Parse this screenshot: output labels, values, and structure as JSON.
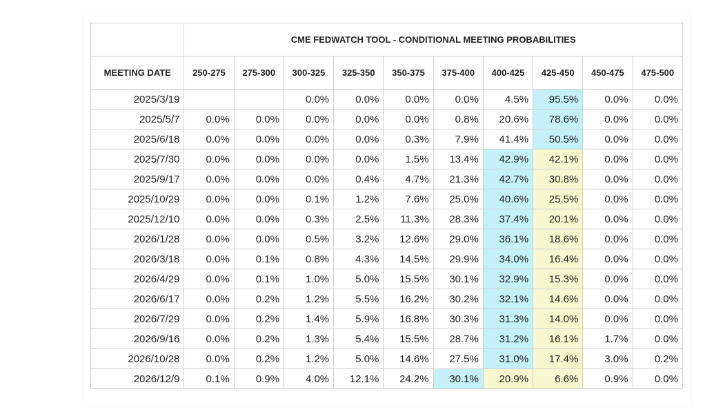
{
  "table": {
    "title": "CME FEDWATCH TOOL - CONDITIONAL MEETING PROBABILITIES",
    "date_header": "MEETING DATE",
    "columns": [
      "250-275",
      "275-300",
      "300-325",
      "325-350",
      "350-375",
      "375-400",
      "400-425",
      "425-450",
      "450-475",
      "475-500"
    ],
    "highlight_colors": {
      "blue": "#c4f0f8",
      "yellow": "#f8f8cf"
    },
    "rows": [
      {
        "date": "2025/3/19",
        "cells": [
          {
            "v": ""
          },
          {
            "v": ""
          },
          {
            "v": "0.0%"
          },
          {
            "v": "0.0%"
          },
          {
            "v": "0.0%"
          },
          {
            "v": "0.0%"
          },
          {
            "v": "4.5%"
          },
          {
            "v": "95.5%",
            "hl": "blue"
          },
          {
            "v": "0.0%"
          },
          {
            "v": "0.0%"
          }
        ]
      },
      {
        "date": "2025/5/7",
        "cells": [
          {
            "v": "0.0%"
          },
          {
            "v": "0.0%"
          },
          {
            "v": "0.0%"
          },
          {
            "v": "0.0%"
          },
          {
            "v": "0.0%"
          },
          {
            "v": "0.8%"
          },
          {
            "v": "20.6%"
          },
          {
            "v": "78.6%",
            "hl": "blue"
          },
          {
            "v": "0.0%"
          },
          {
            "v": "0.0%"
          }
        ]
      },
      {
        "date": "2025/6/18",
        "cells": [
          {
            "v": "0.0%"
          },
          {
            "v": "0.0%"
          },
          {
            "v": "0.0%"
          },
          {
            "v": "0.0%"
          },
          {
            "v": "0.3%"
          },
          {
            "v": "7.9%"
          },
          {
            "v": "41.4%"
          },
          {
            "v": "50.5%",
            "hl": "blue"
          },
          {
            "v": "0.0%"
          },
          {
            "v": "0.0%"
          }
        ]
      },
      {
        "date": "2025/7/30",
        "cells": [
          {
            "v": "0.0%"
          },
          {
            "v": "0.0%"
          },
          {
            "v": "0.0%"
          },
          {
            "v": "0.0%"
          },
          {
            "v": "1.5%"
          },
          {
            "v": "13.4%"
          },
          {
            "v": "42.9%",
            "hl": "blue"
          },
          {
            "v": "42.1%",
            "hl": "yellow"
          },
          {
            "v": "0.0%"
          },
          {
            "v": "0.0%"
          }
        ]
      },
      {
        "date": "2025/9/17",
        "cells": [
          {
            "v": "0.0%"
          },
          {
            "v": "0.0%"
          },
          {
            "v": "0.0%"
          },
          {
            "v": "0.4%"
          },
          {
            "v": "4.7%"
          },
          {
            "v": "21.3%"
          },
          {
            "v": "42.7%",
            "hl": "blue"
          },
          {
            "v": "30.8%",
            "hl": "yellow"
          },
          {
            "v": "0.0%"
          },
          {
            "v": "0.0%"
          }
        ]
      },
      {
        "date": "2025/10/29",
        "cells": [
          {
            "v": "0.0%"
          },
          {
            "v": "0.0%"
          },
          {
            "v": "0.1%"
          },
          {
            "v": "1.2%"
          },
          {
            "v": "7.6%"
          },
          {
            "v": "25.0%"
          },
          {
            "v": "40.6%",
            "hl": "blue"
          },
          {
            "v": "25.5%",
            "hl": "yellow"
          },
          {
            "v": "0.0%"
          },
          {
            "v": "0.0%"
          }
        ]
      },
      {
        "date": "2025/12/10",
        "cells": [
          {
            "v": "0.0%"
          },
          {
            "v": "0.0%"
          },
          {
            "v": "0.3%"
          },
          {
            "v": "2.5%"
          },
          {
            "v": "11.3%"
          },
          {
            "v": "28.3%"
          },
          {
            "v": "37.4%",
            "hl": "blue"
          },
          {
            "v": "20.1%",
            "hl": "yellow"
          },
          {
            "v": "0.0%"
          },
          {
            "v": "0.0%"
          }
        ]
      },
      {
        "date": "2026/1/28",
        "cells": [
          {
            "v": "0.0%"
          },
          {
            "v": "0.0%"
          },
          {
            "v": "0.5%"
          },
          {
            "v": "3.2%"
          },
          {
            "v": "12.6%"
          },
          {
            "v": "29.0%"
          },
          {
            "v": "36.1%",
            "hl": "blue"
          },
          {
            "v": "18.6%",
            "hl": "yellow"
          },
          {
            "v": "0.0%"
          },
          {
            "v": "0.0%"
          }
        ]
      },
      {
        "date": "2026/3/18",
        "cells": [
          {
            "v": "0.0%"
          },
          {
            "v": "0.1%"
          },
          {
            "v": "0.8%"
          },
          {
            "v": "4.3%"
          },
          {
            "v": "14.5%"
          },
          {
            "v": "29.9%"
          },
          {
            "v": "34.0%",
            "hl": "blue"
          },
          {
            "v": "16.4%",
            "hl": "yellow"
          },
          {
            "v": "0.0%"
          },
          {
            "v": "0.0%"
          }
        ]
      },
      {
        "date": "2026/4/29",
        "cells": [
          {
            "v": "0.0%"
          },
          {
            "v": "0.1%"
          },
          {
            "v": "1.0%"
          },
          {
            "v": "5.0%"
          },
          {
            "v": "15.5%"
          },
          {
            "v": "30.1%"
          },
          {
            "v": "32.9%",
            "hl": "blue"
          },
          {
            "v": "15.3%",
            "hl": "yellow"
          },
          {
            "v": "0.0%"
          },
          {
            "v": "0.0%"
          }
        ]
      },
      {
        "date": "2026/6/17",
        "cells": [
          {
            "v": "0.0%"
          },
          {
            "v": "0.2%"
          },
          {
            "v": "1.2%"
          },
          {
            "v": "5.5%"
          },
          {
            "v": "16.2%"
          },
          {
            "v": "30.2%"
          },
          {
            "v": "32.1%",
            "hl": "blue"
          },
          {
            "v": "14.6%",
            "hl": "yellow"
          },
          {
            "v": "0.0%"
          },
          {
            "v": "0.0%"
          }
        ]
      },
      {
        "date": "2026/7/29",
        "cells": [
          {
            "v": "0.0%"
          },
          {
            "v": "0.2%"
          },
          {
            "v": "1.4%"
          },
          {
            "v": "5.9%"
          },
          {
            "v": "16.8%"
          },
          {
            "v": "30.3%"
          },
          {
            "v": "31.3%",
            "hl": "blue"
          },
          {
            "v": "14.0%",
            "hl": "yellow"
          },
          {
            "v": "0.0%"
          },
          {
            "v": "0.0%"
          }
        ]
      },
      {
        "date": "2026/9/16",
        "cells": [
          {
            "v": "0.0%"
          },
          {
            "v": "0.2%"
          },
          {
            "v": "1.3%"
          },
          {
            "v": "5.4%"
          },
          {
            "v": "15.5%"
          },
          {
            "v": "28.7%"
          },
          {
            "v": "31.2%",
            "hl": "blue"
          },
          {
            "v": "16.1%",
            "hl": "yellow"
          },
          {
            "v": "1.7%"
          },
          {
            "v": "0.0%"
          }
        ]
      },
      {
        "date": "2026/10/28",
        "cells": [
          {
            "v": "0.0%"
          },
          {
            "v": "0.2%"
          },
          {
            "v": "1.2%"
          },
          {
            "v": "5.0%"
          },
          {
            "v": "14.6%"
          },
          {
            "v": "27.5%"
          },
          {
            "v": "31.0%",
            "hl": "blue"
          },
          {
            "v": "17.4%",
            "hl": "yellow"
          },
          {
            "v": "3.0%"
          },
          {
            "v": "0.2%"
          }
        ]
      },
      {
        "date": "2026/12/9",
        "cells": [
          {
            "v": "0.1%"
          },
          {
            "v": "0.9%"
          },
          {
            "v": "4.0%"
          },
          {
            "v": "12.1%"
          },
          {
            "v": "24.2%"
          },
          {
            "v": "30.1%",
            "hl": "blue"
          },
          {
            "v": "20.9%",
            "hl": "yellow"
          },
          {
            "v": "6.6%",
            "hl": "yellow"
          },
          {
            "v": "0.9%"
          },
          {
            "v": "0.0%"
          }
        ]
      }
    ]
  }
}
